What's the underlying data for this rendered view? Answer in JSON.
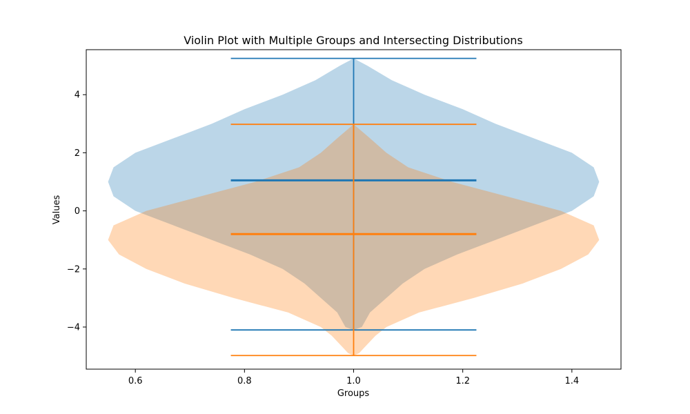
{
  "chart_data": {
    "type": "violin",
    "title": "Violin Plot with Multiple Groups and Intersecting Distributions",
    "xlabel": "Groups",
    "ylabel": "Values",
    "xlim": [
      0.51,
      1.49
    ],
    "ylim": [
      -5.45,
      5.55
    ],
    "xticks": [
      0.6,
      0.8,
      1.0,
      1.2,
      1.4
    ],
    "xtick_labels": [
      "0.6",
      "0.8",
      "1.0",
      "1.2",
      "1.4"
    ],
    "yticks": [
      -4,
      -2,
      0,
      2,
      4
    ],
    "ytick_labels": [
      "−4",
      "−2",
      "0",
      "2",
      "4"
    ],
    "grid": false,
    "series": [
      {
        "position": 1.0,
        "color": "#1f77b4",
        "fill_color": "#1f77b4",
        "fill_opacity": 0.3,
        "min": -4.1,
        "max": 5.25,
        "mean": 1.05,
        "density_profile": [
          [
            -4.1,
            0.0
          ],
          [
            -4.0,
            0.015
          ],
          [
            -3.5,
            0.03
          ],
          [
            -3.0,
            0.06
          ],
          [
            -2.5,
            0.09
          ],
          [
            -2.0,
            0.13
          ],
          [
            -1.5,
            0.19
          ],
          [
            -1.0,
            0.26
          ],
          [
            -0.5,
            0.33
          ],
          [
            0.0,
            0.4
          ],
          [
            0.5,
            0.44
          ],
          [
            1.0,
            0.45
          ],
          [
            1.5,
            0.44
          ],
          [
            2.0,
            0.4
          ],
          [
            2.5,
            0.33
          ],
          [
            3.0,
            0.26
          ],
          [
            3.5,
            0.2
          ],
          [
            4.0,
            0.13
          ],
          [
            4.5,
            0.07
          ],
          [
            5.0,
            0.025
          ],
          [
            5.25,
            0.0
          ]
        ]
      },
      {
        "position": 1.0,
        "color": "#ff7f0e",
        "fill_color": "#ff7f0e",
        "fill_opacity": 0.3,
        "min": -4.98,
        "max": 2.98,
        "mean": -0.8,
        "density_profile": [
          [
            -4.98,
            0.0
          ],
          [
            -4.9,
            0.01
          ],
          [
            -4.7,
            0.02
          ],
          [
            -4.3,
            0.04
          ],
          [
            -4.0,
            0.06
          ],
          [
            -3.5,
            0.12
          ],
          [
            -3.0,
            0.22
          ],
          [
            -2.5,
            0.31
          ],
          [
            -2.0,
            0.38
          ],
          [
            -1.5,
            0.43
          ],
          [
            -1.0,
            0.45
          ],
          [
            -0.5,
            0.44
          ],
          [
            0.0,
            0.38
          ],
          [
            0.5,
            0.28
          ],
          [
            1.0,
            0.18
          ],
          [
            1.5,
            0.1
          ],
          [
            2.0,
            0.06
          ],
          [
            2.5,
            0.03
          ],
          [
            2.98,
            0.0
          ]
        ]
      }
    ]
  }
}
